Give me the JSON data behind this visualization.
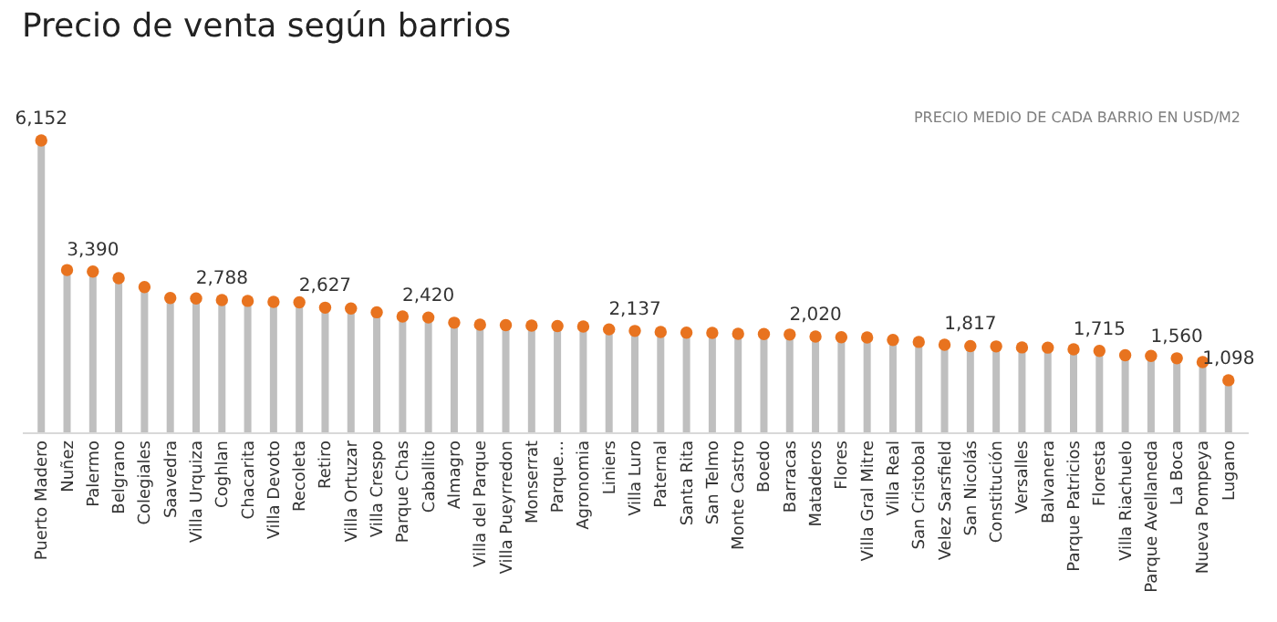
{
  "chart_data": {
    "type": "lollipop",
    "title": "Precio de venta según barrios",
    "subtitle": "PRECIO MEDIO DE CADA BARRIO EN USD/M2",
    "categories": [
      "Puerto Madero",
      "Nuñez",
      "Palermo",
      "Belgrano",
      "Colegiales",
      "Saavedra",
      "Villa Urquiza",
      "Coghlan",
      "Chacarita",
      "Villa Devoto",
      "Recoleta",
      "Retiro",
      "Villa Ortuzar",
      "Villa Crespo",
      "Parque Chas",
      "Caballito",
      "Almagro",
      "Villa del Parque",
      "Villa Pueyrredon",
      "Monserrat",
      "Parque...",
      "Agronomia",
      "Liniers",
      "Villa Luro",
      "Paternal",
      "Santa Rita",
      "San Telmo",
      "Monte Castro",
      "Boedo",
      "Barracas",
      "Mataderos",
      "Flores",
      "Villa Gral Mitre",
      "Villa Real",
      "San Cristobal",
      "Velez Sarsfield",
      "San Nicolás",
      "Constitución",
      "Versalles",
      "Balvanera",
      "Parque Patricios",
      "Floresta",
      "Villa Riachuelo",
      "Parque Avellaneda",
      "La Boca",
      "Nueva Pompeya",
      "Lugano"
    ],
    "series": [
      {
        "color": "#e8731f",
        "values": [
          6152,
          3420,
          3390,
          3250,
          3060,
          2830,
          2820,
          2788,
          2770,
          2750,
          2740,
          2627,
          2610,
          2530,
          2440,
          2420,
          2310,
          2270,
          2260,
          2250,
          2240,
          2230,
          2170,
          2137,
          2115,
          2100,
          2095,
          2075,
          2070,
          2060,
          2020,
          2005,
          2000,
          1945,
          1905,
          1845,
          1817,
          1810,
          1790,
          1785,
          1750,
          1715,
          1625,
          1610,
          1560,
          1480,
          1098
        ],
        "value_labels": [
          "6,152",
          null,
          "3,390",
          null,
          null,
          null,
          null,
          "2,788",
          null,
          null,
          null,
          "2,627",
          null,
          null,
          null,
          "2,420",
          null,
          null,
          null,
          null,
          null,
          null,
          null,
          "2,137",
          null,
          null,
          null,
          null,
          null,
          null,
          "2,020",
          null,
          null,
          null,
          null,
          null,
          "1,817",
          null,
          null,
          null,
          null,
          "1,715",
          null,
          null,
          "1,560",
          null,
          "1,098"
        ]
      }
    ],
    "tick_labels": "x",
    "marker": "circle"
  }
}
